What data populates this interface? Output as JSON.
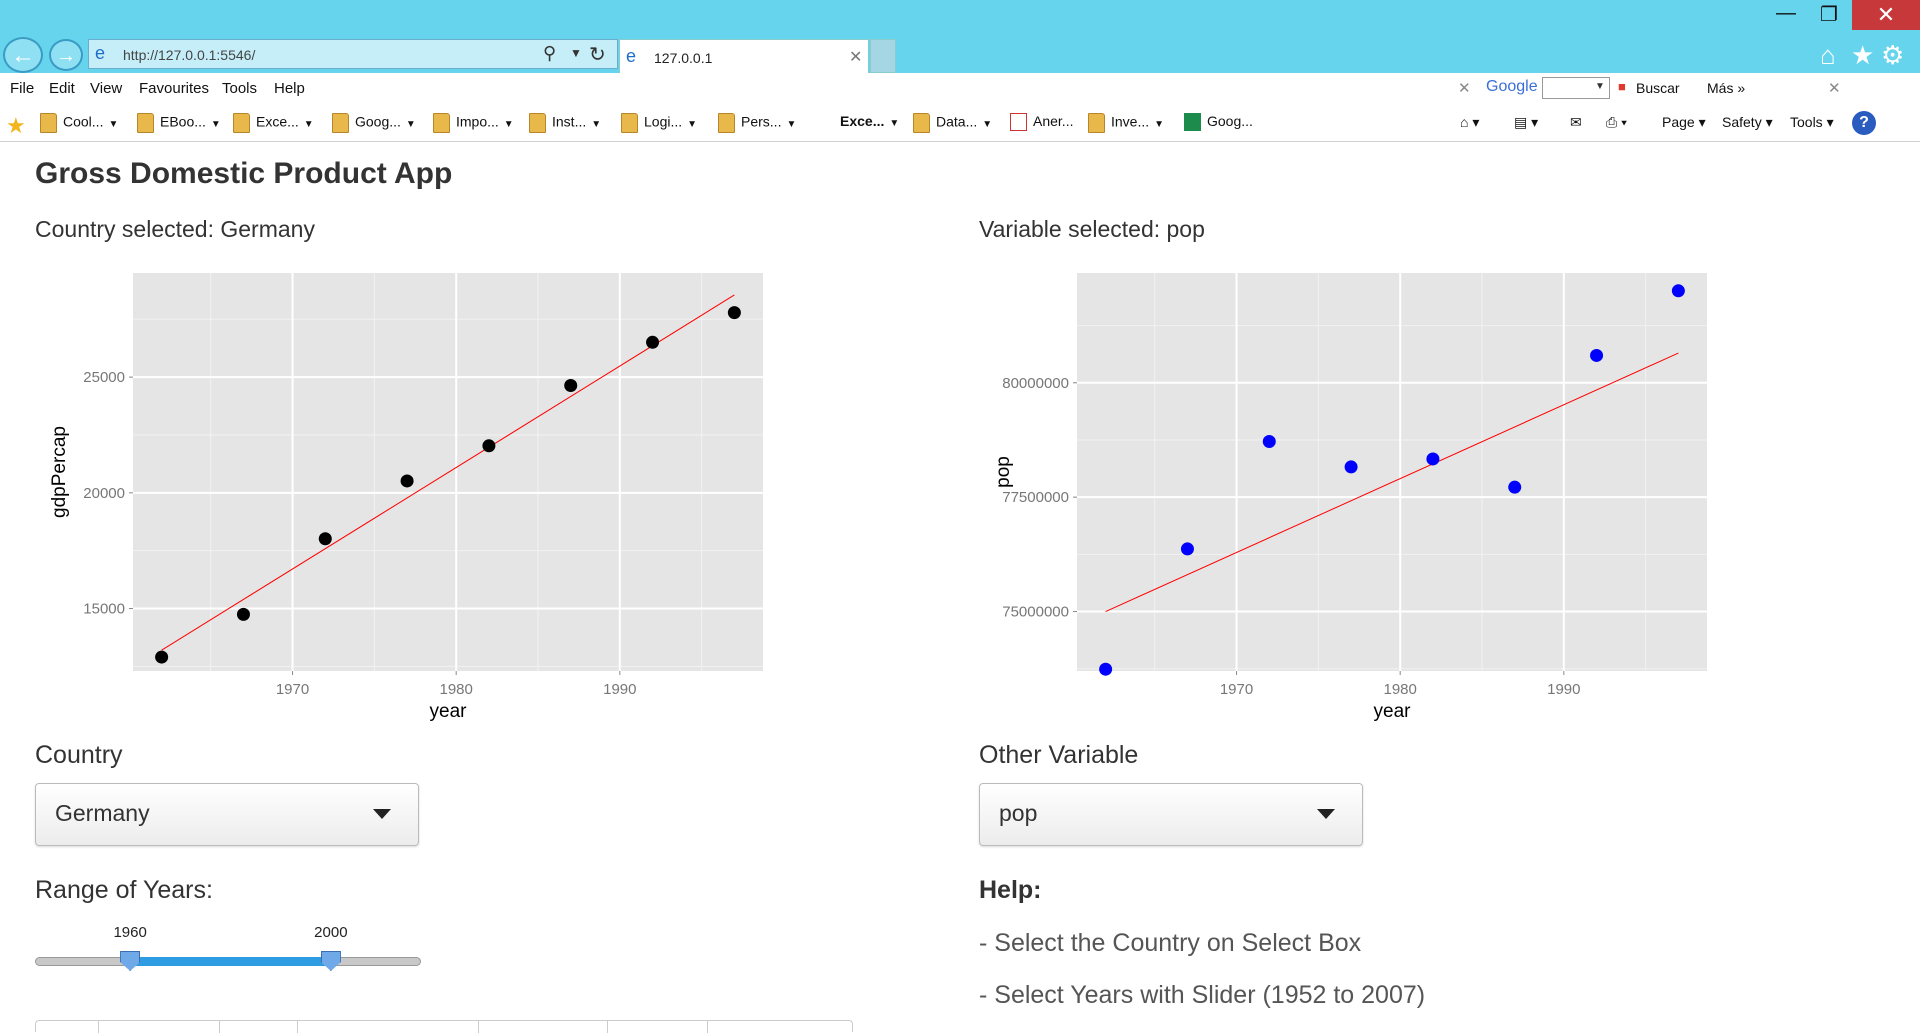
{
  "browser": {
    "url": "http://127.0.0.1:5546/",
    "tab_title": "127.0.0.1",
    "menu": [
      "File",
      "Edit",
      "View",
      "Favourites",
      "Tools",
      "Help"
    ],
    "toolbar": {
      "google": "Google",
      "buscar": "Buscar",
      "mas": "Más »"
    },
    "favourites": [
      {
        "label": "Cool...",
        "icon": "folder"
      },
      {
        "label": "EBoo...",
        "icon": "folder"
      },
      {
        "label": "Exce...",
        "icon": "folder"
      },
      {
        "label": "Goog...",
        "icon": "folder"
      },
      {
        "label": "Impo...",
        "icon": "folder"
      },
      {
        "label": "Inst...",
        "icon": "folder"
      },
      {
        "label": "Logi...",
        "icon": "folder"
      },
      {
        "label": "Pers...",
        "icon": "folder"
      },
      {
        "label": "Exce...",
        "icon": "none"
      },
      {
        "label": "Data...",
        "icon": "folder"
      },
      {
        "label": "Aner...",
        "icon": "page-red"
      },
      {
        "label": "Inve...",
        "icon": "folder"
      },
      {
        "label": "Goog...",
        "icon": "page-green"
      }
    ],
    "commands": [
      "Page",
      "Safety",
      "Tools"
    ]
  },
  "app": {
    "title": "Gross Domestic Product App",
    "country_selected": "Country selected: Germany",
    "variable_selected": "Variable selected: pop",
    "country_label": "Country",
    "country_value": "Germany",
    "other_variable_label": "Other Variable",
    "other_variable_value": "pop",
    "range_label": "Range of Years:",
    "slider": {
      "min": 1960,
      "max": 2000,
      "range_start": 1952,
      "range_end": 2007
    },
    "help_title": "Help:",
    "help_lines": [
      "- Select the Country on Select Box",
      "- Select Years with Slider (1952 to 2007)"
    ],
    "colors": {
      "point_left": "#000000",
      "point_right": "#0000ff",
      "fit_line": "#ff0000",
      "panel_bg": "#e5e5e5"
    }
  },
  "chart_data": [
    {
      "type": "scatter",
      "xlabel": "year",
      "ylabel": "gdpPercap",
      "x_ticks": [
        1970,
        1980,
        1990
      ],
      "y_ticks": [
        15000,
        20000,
        25000
      ],
      "xlim": [
        1960.25,
        1998.75
      ],
      "ylim": [
        12300,
        29500
      ],
      "points": [
        {
          "x": 1962,
          "y": 12902
        },
        {
          "x": 1967,
          "y": 14746
        },
        {
          "x": 1972,
          "y": 18016
        },
        {
          "x": 1977,
          "y": 20513
        },
        {
          "x": 1982,
          "y": 22032
        },
        {
          "x": 1987,
          "y": 24639
        },
        {
          "x": 1992,
          "y": 26505
        },
        {
          "x": 1997,
          "y": 27789
        }
      ],
      "fit_line": {
        "x": [
          1962,
          1997
        ],
        "y": [
          13200,
          28550
        ]
      },
      "grid": true
    },
    {
      "type": "scatter",
      "xlabel": "year",
      "ylabel": "pop",
      "x_ticks": [
        1970,
        1980,
        1990
      ],
      "y_ticks": [
        75000000,
        77500000,
        80000000
      ],
      "xlim": [
        1960.25,
        1998.75
      ],
      "ylim": [
        73700000,
        82400000
      ],
      "points": [
        {
          "x": 1962,
          "y": 73739117
        },
        {
          "x": 1967,
          "y": 76368453
        },
        {
          "x": 1972,
          "y": 78717088
        },
        {
          "x": 1977,
          "y": 78160773
        },
        {
          "x": 1982,
          "y": 78335266
        },
        {
          "x": 1987,
          "y": 77718298
        },
        {
          "x": 1992,
          "y": 80597764
        },
        {
          "x": 1997,
          "y": 82011073
        }
      ],
      "fit_line": {
        "x": [
          1962,
          1997
        ],
        "y": [
          75000000,
          80650000
        ]
      },
      "grid": true
    }
  ]
}
